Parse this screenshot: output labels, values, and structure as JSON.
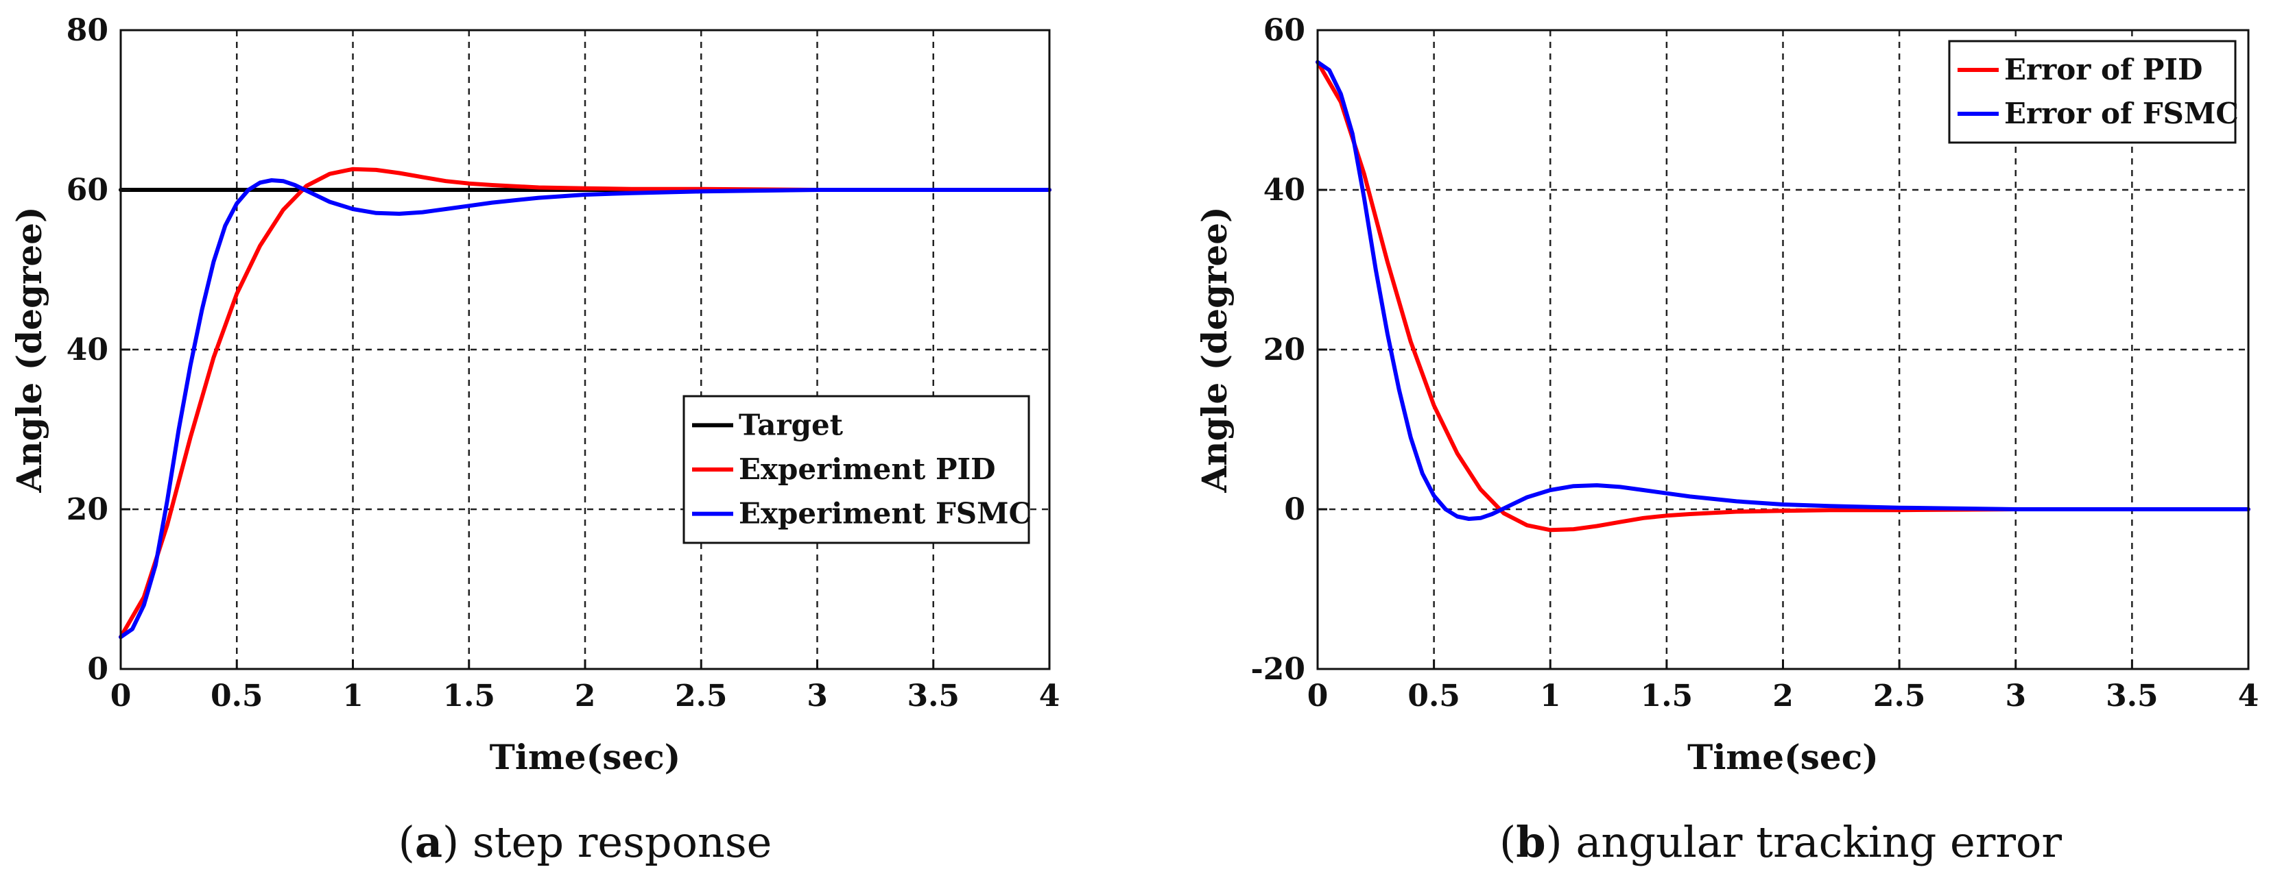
{
  "chart_data": [
    {
      "type": "line",
      "id": "a",
      "caption_letter": "a",
      "caption_text": "step response",
      "xlabel": "Time(sec)",
      "ylabel": "Angle (degree)",
      "xlim": [
        0,
        4
      ],
      "ylim": [
        0,
        80
      ],
      "xticks": [
        "0",
        "0.5",
        "1",
        "1.5",
        "2",
        "2.5",
        "3",
        "3.5",
        "4"
      ],
      "yticks": [
        "0",
        "20",
        "40",
        "60",
        "80"
      ],
      "grid": true,
      "legend_position": "center-right",
      "series": [
        {
          "name": "Target",
          "color": "#000000",
          "x": [
            0,
            4
          ],
          "y": [
            60,
            60
          ]
        },
        {
          "name": "Experiment PID",
          "color": "#ff0000",
          "x": [
            0,
            0.1,
            0.2,
            0.3,
            0.4,
            0.5,
            0.6,
            0.7,
            0.8,
            0.9,
            1.0,
            1.1,
            1.2,
            1.3,
            1.4,
            1.5,
            1.6,
            1.8,
            2.0,
            2.2,
            2.5,
            3.0,
            3.5,
            4.0
          ],
          "y": [
            4,
            9,
            18,
            29,
            39,
            47,
            53,
            57.5,
            60.5,
            62,
            62.6,
            62.5,
            62.1,
            61.6,
            61.1,
            60.8,
            60.6,
            60.3,
            60.2,
            60.1,
            60.1,
            60,
            60,
            60
          ]
        },
        {
          "name": "Experiment FSMC",
          "color": "#0000ff",
          "x": [
            0,
            0.05,
            0.1,
            0.15,
            0.2,
            0.25,
            0.3,
            0.35,
            0.4,
            0.45,
            0.5,
            0.55,
            0.6,
            0.65,
            0.7,
            0.75,
            0.8,
            0.9,
            1.0,
            1.1,
            1.2,
            1.3,
            1.4,
            1.5,
            1.6,
            1.8,
            2.0,
            2.2,
            2.5,
            3.0,
            3.5,
            4.0
          ],
          "y": [
            4,
            5,
            8,
            13,
            21,
            30,
            38,
            45,
            51,
            55.5,
            58.3,
            60,
            60.9,
            61.2,
            61.1,
            60.6,
            59.9,
            58.5,
            57.6,
            57.1,
            57,
            57.2,
            57.6,
            58,
            58.4,
            59,
            59.4,
            59.6,
            59.8,
            60,
            60,
            60
          ]
        }
      ]
    },
    {
      "type": "line",
      "id": "b",
      "caption_letter": "b",
      "caption_text": "angular tracking error",
      "xlabel": "Time(sec)",
      "ylabel": "Angle (degree)",
      "xlim": [
        0,
        4
      ],
      "ylim": [
        -20,
        60
      ],
      "xticks": [
        "0",
        "0.5",
        "1",
        "1.5",
        "2",
        "2.5",
        "3",
        "3.5",
        "4"
      ],
      "yticks": [
        "-20",
        "0",
        "20",
        "40",
        "60"
      ],
      "grid": true,
      "legend_position": "top-right",
      "series": [
        {
          "name": "Error of PID",
          "color": "#ff0000",
          "x": [
            0,
            0.1,
            0.2,
            0.3,
            0.4,
            0.5,
            0.6,
            0.7,
            0.8,
            0.9,
            1.0,
            1.1,
            1.2,
            1.3,
            1.4,
            1.5,
            1.6,
            1.8,
            2.0,
            2.2,
            2.5,
            3.0,
            3.5,
            4.0
          ],
          "y": [
            56,
            51,
            42,
            31,
            21,
            13,
            7,
            2.5,
            -0.5,
            -2,
            -2.6,
            -2.5,
            -2.1,
            -1.6,
            -1.1,
            -0.8,
            -0.6,
            -0.3,
            -0.2,
            -0.1,
            -0.1,
            0,
            0,
            0
          ]
        },
        {
          "name": "Error of FSMC",
          "color": "#0000ff",
          "x": [
            0,
            0.05,
            0.1,
            0.15,
            0.2,
            0.25,
            0.3,
            0.35,
            0.4,
            0.45,
            0.5,
            0.55,
            0.6,
            0.65,
            0.7,
            0.75,
            0.8,
            0.9,
            1.0,
            1.1,
            1.2,
            1.3,
            1.4,
            1.5,
            1.6,
            1.8,
            2.0,
            2.2,
            2.5,
            3.0,
            3.5,
            4.0
          ],
          "y": [
            56,
            55,
            52,
            47,
            39,
            30,
            22,
            15,
            9,
            4.5,
            1.7,
            0,
            -0.9,
            -1.2,
            -1.1,
            -0.6,
            0.1,
            1.5,
            2.4,
            2.9,
            3,
            2.8,
            2.4,
            2,
            1.6,
            1,
            0.6,
            0.4,
            0.2,
            0,
            0,
            0
          ]
        }
      ]
    }
  ]
}
